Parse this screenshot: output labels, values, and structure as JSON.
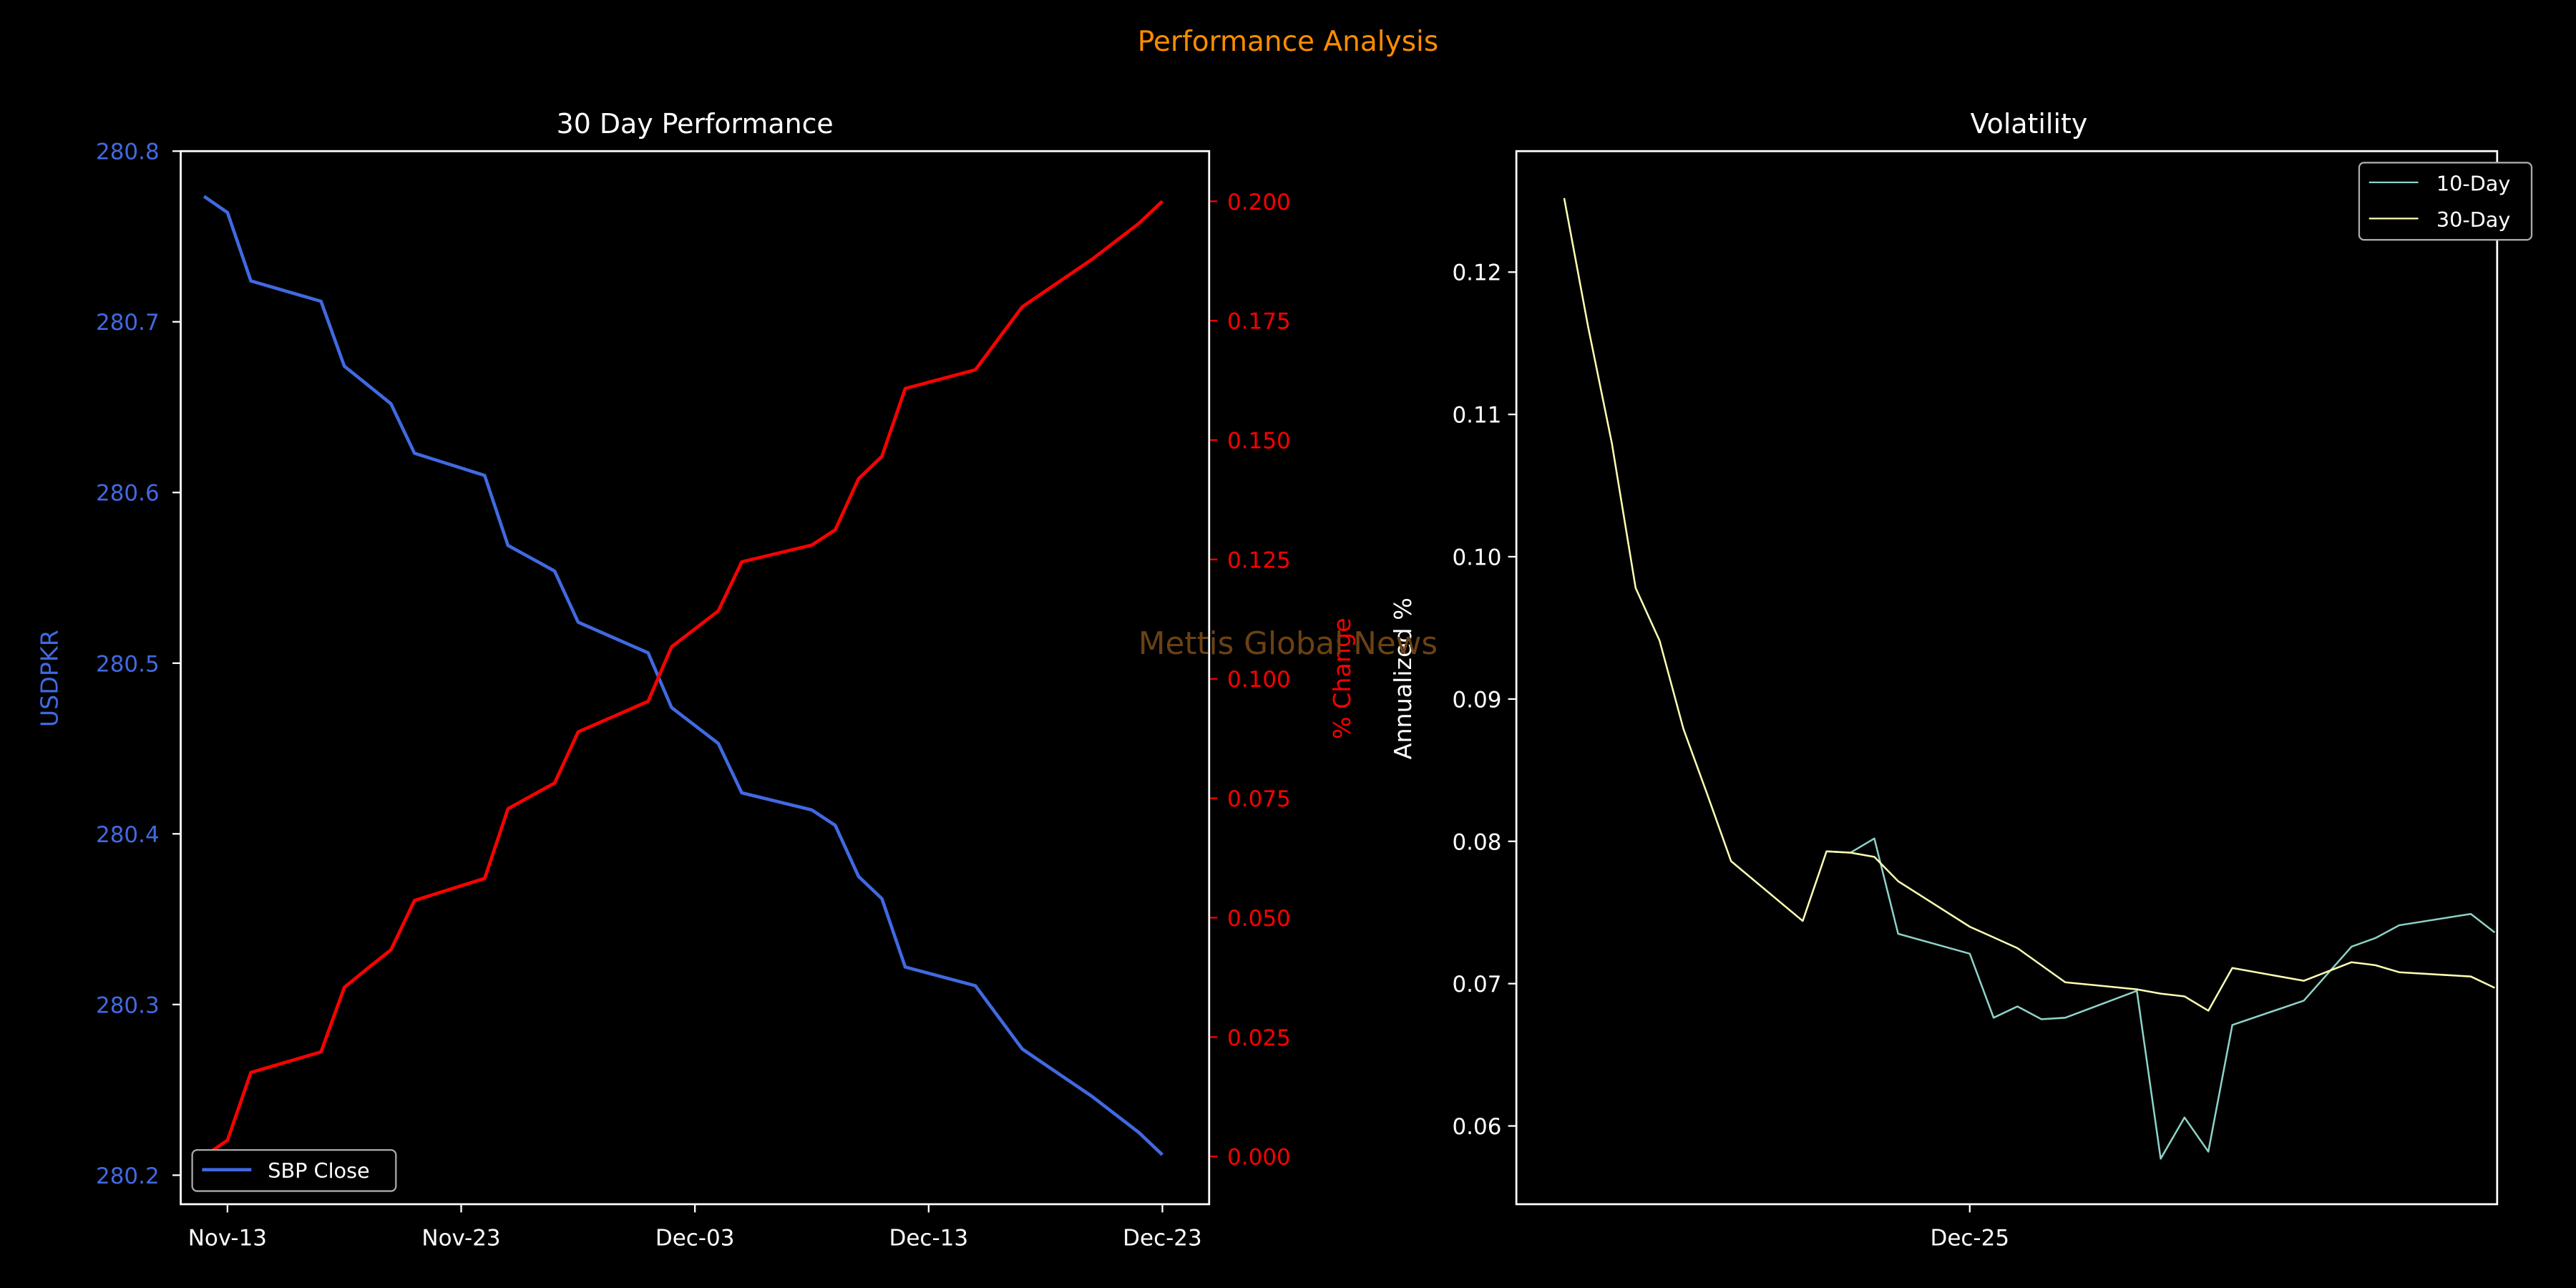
{
  "figure": {
    "suptitle": "Performance Analysis",
    "watermark": "Mettis Global News",
    "colors": {
      "suptitle": "#ff8c00",
      "watermark": "#6b4214",
      "blue": "#4169e1",
      "red": "#ff0000",
      "ten_day": "#8dd3c7",
      "thirty_day": "#ffffb3"
    }
  },
  "chart_data": [
    {
      "type": "line",
      "title": "30 Day Performance",
      "xlabel": "",
      "ylabel": "USDPKR",
      "y2label": "% Change",
      "x_unit": "days from Nov-13",
      "xticks": [
        {
          "label": "Nov-13",
          "day": 0
        },
        {
          "label": "Nov-23",
          "day": 10
        },
        {
          "label": "Dec-03",
          "day": 20
        },
        {
          "label": "Dec-13",
          "day": 30
        },
        {
          "label": "Dec-23",
          "day": 40
        }
      ],
      "xlim": [
        -2,
        42
      ],
      "ylim": [
        280.183,
        280.8
      ],
      "yticks": [
        "280.2",
        "280.3",
        "280.4",
        "280.5",
        "280.6",
        "280.7",
        "280.8"
      ],
      "y2lim": [
        -0.01,
        0.2105
      ],
      "y2ticks": [
        "0.000",
        "0.025",
        "0.050",
        "0.075",
        "0.100",
        "0.125",
        "0.150",
        "0.175",
        "0.200"
      ],
      "legend": {
        "position": "lower-left",
        "entries": [
          "SBP Close"
        ]
      },
      "x": [
        -1,
        0,
        1,
        4,
        5,
        6,
        7,
        8,
        11,
        12,
        14,
        15,
        18,
        19,
        21,
        22,
        25,
        26,
        27,
        28,
        29,
        32,
        34,
        37,
        39,
        40
      ],
      "series": [
        {
          "name": "SBP Close",
          "axis": "left",
          "values": [
            280.7735,
            280.764,
            280.724,
            280.712,
            280.674,
            280.663,
            280.652,
            280.623,
            280.61,
            280.569,
            280.554,
            280.524,
            280.506,
            280.474,
            280.453,
            280.424,
            280.414,
            280.405,
            280.375,
            280.362,
            280.322,
            280.311,
            280.274,
            280.246,
            280.225,
            280.212
          ]
        },
        {
          "name": "% Change",
          "axis": "right",
          "values": [
            0,
            0.0034,
            0.0176,
            0.0219,
            0.0354,
            0.0394,
            0.0433,
            0.0536,
            0.0582,
            0.0728,
            0.0782,
            0.0889,
            0.0953,
            0.1067,
            0.1142,
            0.1245,
            0.128,
            0.1312,
            0.1419,
            0.1466,
            0.1608,
            0.1647,
            0.1779,
            0.1879,
            0.1954,
            0.2
          ]
        }
      ]
    },
    {
      "type": "line",
      "title": "Volatility",
      "xlabel": "",
      "ylabel": "Annualized %",
      "x_unit": "days from Dec-25",
      "xticks": [
        {
          "label": "Dec-25",
          "day": 0
        }
      ],
      "xlim": [
        -19,
        22.1
      ],
      "ylim": [
        0.0545,
        0.1285
      ],
      "yticks": [
        "0.06",
        "0.07",
        "0.08",
        "0.09",
        "0.10",
        "0.11",
        "0.12"
      ],
      "legend": {
        "position": "top-right",
        "entries": [
          "10-Day",
          "30-Day"
        ]
      },
      "series": [
        {
          "name": "10-Day",
          "x": [
            -6,
            -5,
            -4,
            -3,
            0,
            1,
            2,
            3,
            4,
            7,
            8,
            9,
            10,
            11,
            14,
            16,
            17,
            18,
            21,
            22
          ],
          "values": [
            0.0793,
            0.0792,
            0.0802,
            0.0735,
            0.0721,
            0.0676,
            0.0684,
            0.0675,
            0.0676,
            0.0695,
            0.0577,
            0.0606,
            0.0582,
            0.0671,
            0.0688,
            0.0726,
            0.0732,
            0.0741,
            0.0749,
            0.0736
          ]
        },
        {
          "name": "30-Day",
          "x": [
            -17,
            -16,
            -15,
            -14,
            -13,
            -12,
            -11,
            -10,
            -7,
            -6,
            -5,
            -4,
            -3,
            0,
            2,
            4,
            7,
            8,
            9,
            10,
            11,
            14,
            16,
            17,
            18,
            21,
            22
          ],
          "values": [
            0.1252,
            0.1162,
            0.108,
            0.0978,
            0.0941,
            0.0879,
            0.0833,
            0.0786,
            0.0744,
            0.0793,
            0.0792,
            0.0789,
            0.0772,
            0.074,
            0.0725,
            0.0701,
            0.0696,
            0.0693,
            0.0691,
            0.0681,
            0.0711,
            0.0702,
            0.0715,
            0.0713,
            0.0708,
            0.0705,
            0.0697
          ]
        }
      ]
    }
  ]
}
